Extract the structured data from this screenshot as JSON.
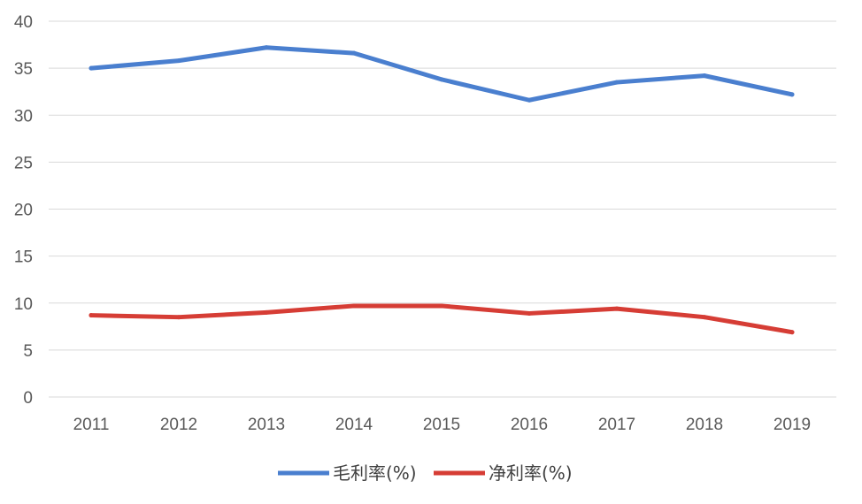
{
  "chart_data": {
    "type": "line",
    "title": "",
    "xlabel": "",
    "ylabel": "",
    "categories": [
      "2011",
      "2012",
      "2013",
      "2014",
      "2015",
      "2016",
      "2017",
      "2018",
      "2019"
    ],
    "ylim": [
      0,
      40
    ],
    "yticks": [
      0,
      5,
      10,
      15,
      20,
      25,
      30,
      35,
      40
    ],
    "grid": true,
    "legend_position": "bottom",
    "series": [
      {
        "name": "毛利率(%)",
        "color": "#4a7fcf",
        "values": [
          35.0,
          35.8,
          37.2,
          36.6,
          33.8,
          31.6,
          33.5,
          34.2,
          32.2
        ]
      },
      {
        "name": "净利率(%)",
        "color": "#d63d35",
        "values": [
          8.7,
          8.5,
          9.0,
          9.7,
          9.7,
          8.9,
          9.4,
          8.5,
          6.9
        ]
      }
    ]
  }
}
